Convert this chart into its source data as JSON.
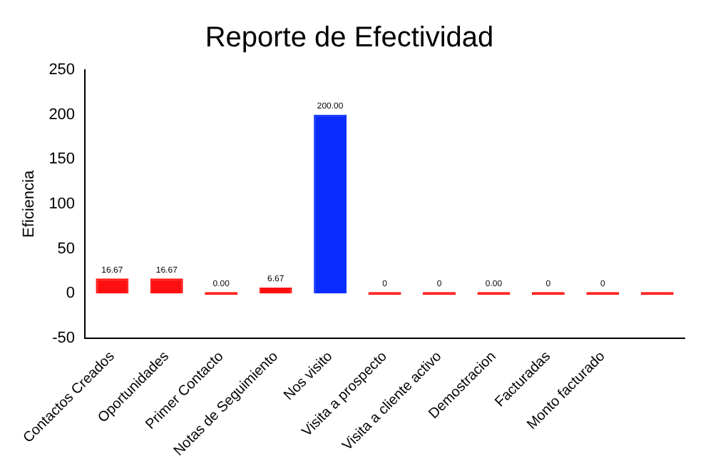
{
  "chart_data": {
    "type": "bar",
    "title": "Reporte de Efectividad",
    "ylabel": "Eficiencia",
    "categories": [
      "Contactos Creados",
      "Oportunidades",
      "Primer Contacto",
      "Notas de Seguimiento",
      "Nos visito",
      "Visita a prospecto",
      "Visita a cliente activo",
      "Demostracion",
      "Facturadas",
      "Monto facturado",
      null
    ],
    "values": [
      16.67,
      16.67,
      0,
      6.67,
      200,
      0,
      0,
      0,
      0,
      0,
      0
    ],
    "colors": [
      "#ff1010",
      "#ff1010",
      "#ff1010",
      "#ff1010",
      "#0a2cff",
      "#ff1010",
      "#ff1010",
      "#ff1010",
      "#ff1010",
      "#ff1010",
      "#ff1010"
    ],
    "value_labels": [
      "16.67",
      "16.67",
      "0.00",
      "6.67",
      "200.00",
      "0",
      "0",
      "0.00",
      "0",
      "0",
      null
    ],
    "ylim": [
      -50,
      250
    ],
    "yticks": [
      -50,
      0,
      50,
      100,
      150,
      200,
      250
    ],
    "grid": false,
    "legend": false
  }
}
